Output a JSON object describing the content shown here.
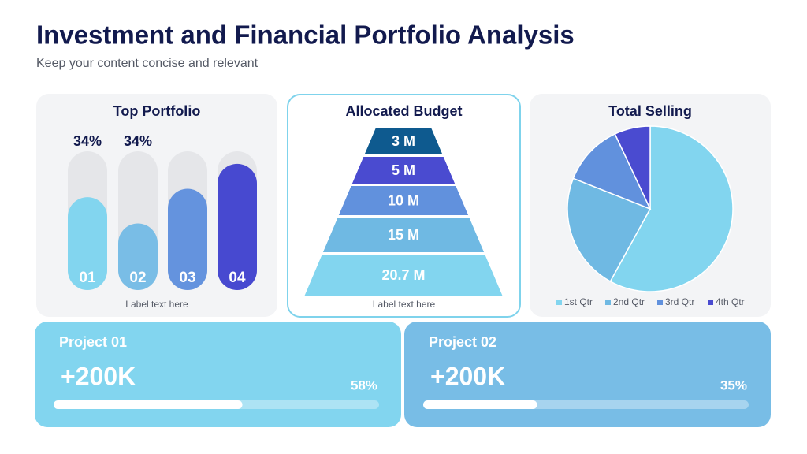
{
  "header": {
    "title": "Investment and Financial Portfolio Analysis",
    "subtitle": "Keep your content concise and relevant"
  },
  "chart_data": [
    {
      "type": "bar",
      "title": "Top Portfolio",
      "categories": [
        "01",
        "02",
        "03",
        "04"
      ],
      "values": [
        67,
        48,
        73,
        91
      ],
      "colors": [
        "#82d5ef",
        "#79bde6",
        "#6493de",
        "#4749d0"
      ],
      "ylim": [
        0,
        100
      ],
      "annotations": [
        "34%",
        "34%"
      ],
      "x_label": "Label text here"
    },
    {
      "type": "funnel",
      "title": "Allocated Budget",
      "values": [
        3,
        5,
        10,
        15,
        20.7
      ],
      "value_labels": [
        "3 M",
        "5 M",
        "10 M",
        "15 M",
        "20.7 M"
      ],
      "colors": [
        "#0e5a8f",
        "#4a4bd0",
        "#6191dd",
        "#6fb9e3",
        "#82d5ef"
      ],
      "x_label": "Label text here"
    },
    {
      "type": "pie",
      "title": "Total Selling",
      "categories": [
        "1st Qtr",
        "2nd Qtr",
        "3rd Qtr",
        "4th Qtr"
      ],
      "values": [
        58,
        23,
        12,
        7
      ],
      "colors": [
        "#82d5ef",
        "#6fb9e3",
        "#6191dd",
        "#4a4bd0"
      ],
      "legend": "bottom"
    }
  ],
  "projects": [
    {
      "title": "Project 01",
      "amount": "+200K",
      "progress": {
        "value": 58,
        "label": "58%"
      },
      "color": "#82d5ef"
    },
    {
      "title": "Project 02",
      "amount": "+200K",
      "progress": {
        "value": 35,
        "label": "35%"
      },
      "color": "#78bde6"
    }
  ]
}
